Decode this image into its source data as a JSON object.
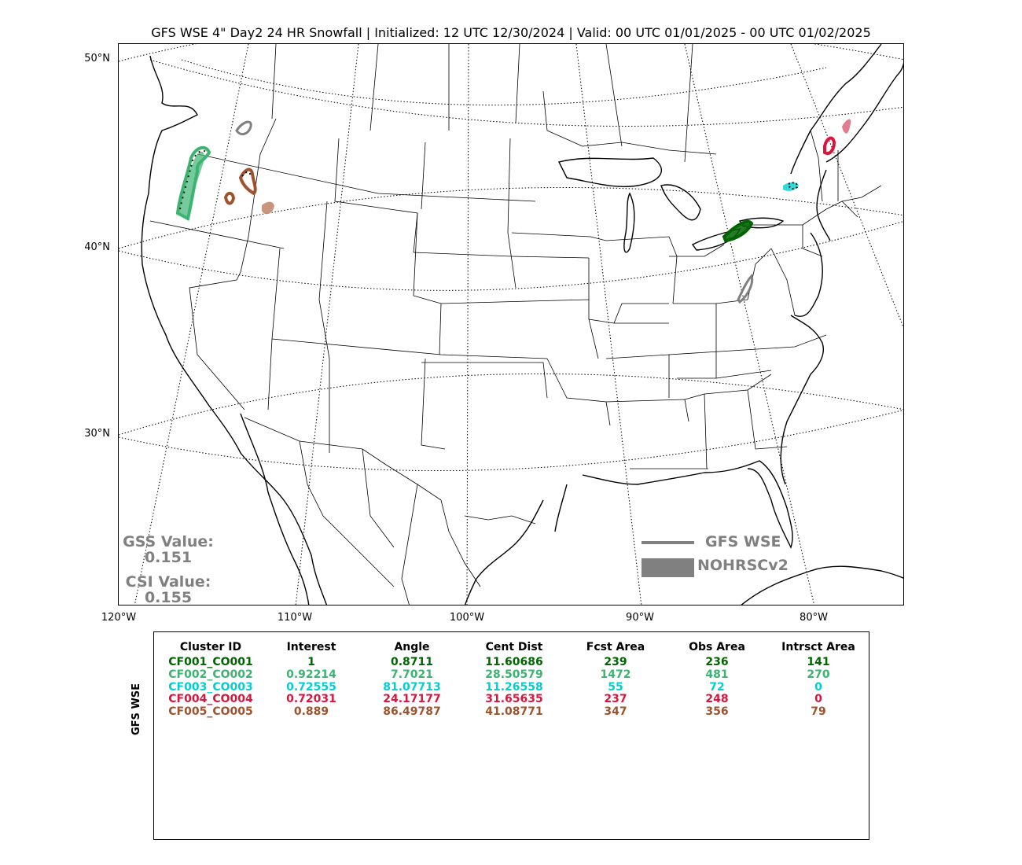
{
  "title": "GFS WSE 4\" Day2 24 HR Snowfall | Initialized: 12 UTC 12/30/2024 | Valid: 00 UTC 01/01/2025 - 00 UTC 01/02/2025",
  "map": {
    "lat_labels": [
      "50°N",
      "40°N",
      "30°N"
    ],
    "lon_labels": [
      "120°W",
      "110°W",
      "100°W",
      "90°W",
      "80°W"
    ],
    "scores": {
      "gss_label": "GSS Value:",
      "gss_value": "0.151",
      "csi_label": "CSI Value:",
      "csi_value": "0.155"
    },
    "legend": {
      "line_label": "GFS WSE",
      "fill_label": "NOHRSCv2",
      "color": "#808080"
    }
  },
  "table": {
    "ylabel": "GFS WSE",
    "headers": [
      "Cluster ID",
      "Interest",
      "Angle",
      "Cent Dist",
      "Fcst Area",
      "Obs Area",
      "Intrsct Area"
    ],
    "rows": [
      {
        "color": "#006400",
        "cells": [
          "CF001_CO001",
          "1",
          "0.8711",
          "11.60686",
          "239",
          "236",
          "141"
        ]
      },
      {
        "color": "#3cb371",
        "cells": [
          "CF002_CO002",
          "0.92214",
          "7.7021",
          "28.50579",
          "1472",
          "481",
          "270"
        ]
      },
      {
        "color": "#00ced1",
        "cells": [
          "CF003_CO003",
          "0.72555",
          "81.07713",
          "11.26558",
          "55",
          "72",
          "0"
        ]
      },
      {
        "color": "#dc143c",
        "cells": [
          "CF004_CO004",
          "0.72031",
          "24.17177",
          "31.65635",
          "237",
          "248",
          "0"
        ]
      },
      {
        "color": "#a0522d",
        "cells": [
          "CF005_CO005",
          "0.889",
          "86.49787",
          "41.08771",
          "347",
          "356",
          "79"
        ]
      }
    ]
  }
}
